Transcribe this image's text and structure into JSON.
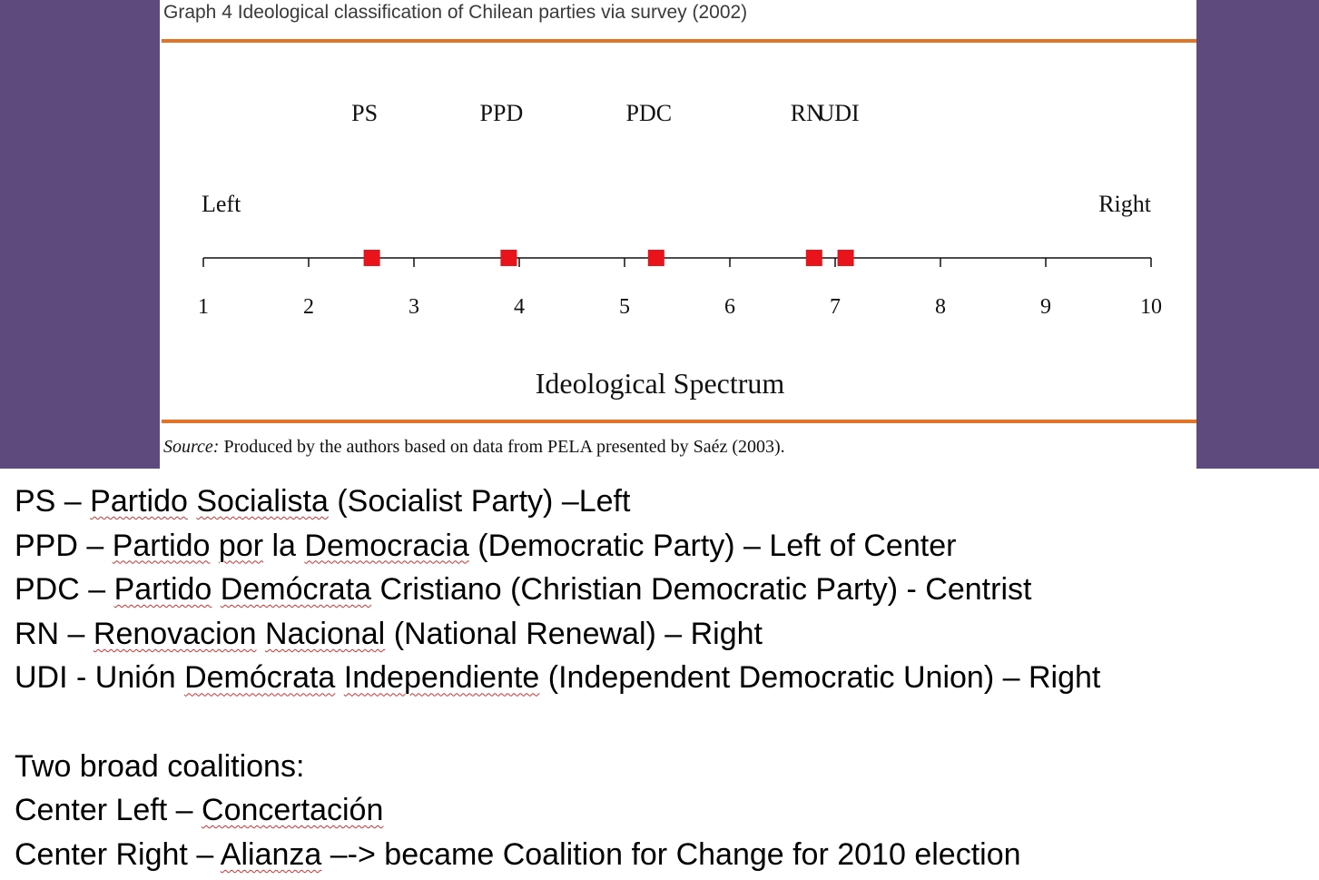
{
  "figure": {
    "title": "Graph 4 Ideological classification of Chilean parties via survey (2002)",
    "source_label": "Source:",
    "source_text": "Produced by the authors based on data from PELA presented by Saéz (2003)."
  },
  "chart_data": {
    "type": "scatter",
    "xlabel": "Ideological Spectrum",
    "xlim": [
      1,
      10
    ],
    "ticks": [
      1,
      2,
      3,
      4,
      5,
      6,
      7,
      8,
      9,
      10
    ],
    "end_labels": {
      "left": "Left",
      "right": "Right"
    },
    "marker_color": "#e8131b",
    "points": [
      {
        "label": "PS",
        "x": 2.6
      },
      {
        "label": "PPD",
        "x": 3.9
      },
      {
        "label": "PDC",
        "x": 5.3
      },
      {
        "label": "RN",
        "x": 6.8
      },
      {
        "label": "UDI",
        "x": 7.1
      }
    ],
    "grid": false
  },
  "notes": {
    "lines": [
      [
        {
          "t": "PS – "
        },
        {
          "t": "Partido",
          "s": true
        },
        {
          "t": " "
        },
        {
          "t": "Socialista",
          "s": true
        },
        {
          "t": " (Socialist Party) –Left"
        }
      ],
      [
        {
          "t": "PPD – "
        },
        {
          "t": "Partido",
          "s": true
        },
        {
          "t": " "
        },
        {
          "t": "por",
          "s": true
        },
        {
          "t": " la "
        },
        {
          "t": "Democracia",
          "s": true
        },
        {
          "t": " (Democratic Party) – Left of Center"
        }
      ],
      [
        {
          "t": "PDC – "
        },
        {
          "t": "Partido",
          "s": true
        },
        {
          "t": " "
        },
        {
          "t": "Demócrata",
          "s": true
        },
        {
          "t": " Cristiano (Christian Democratic Party) - Centrist"
        }
      ],
      [
        {
          "t": "RN – "
        },
        {
          "t": "Renovacion",
          "s": true
        },
        {
          "t": " "
        },
        {
          "t": "Nacional",
          "s": true
        },
        {
          "t": " (National Renewal) – Right"
        }
      ],
      [
        {
          "t": "UDI - Unión "
        },
        {
          "t": "Demócrata",
          "s": true
        },
        {
          "t": " "
        },
        {
          "t": "Independiente",
          "s": true
        },
        {
          "t": " (Independent Democratic Union) – Right"
        }
      ],
      [],
      [
        {
          "t": "Two broad coalitions:"
        }
      ],
      [
        {
          "t": "Center Left – "
        },
        {
          "t": "Concertación",
          "s": true
        }
      ],
      [
        {
          "t": "Center Right – "
        },
        {
          "t": "Alianza",
          "s": true
        },
        {
          "t": " –-> became Coalition for Change for 2010 election"
        }
      ]
    ]
  }
}
